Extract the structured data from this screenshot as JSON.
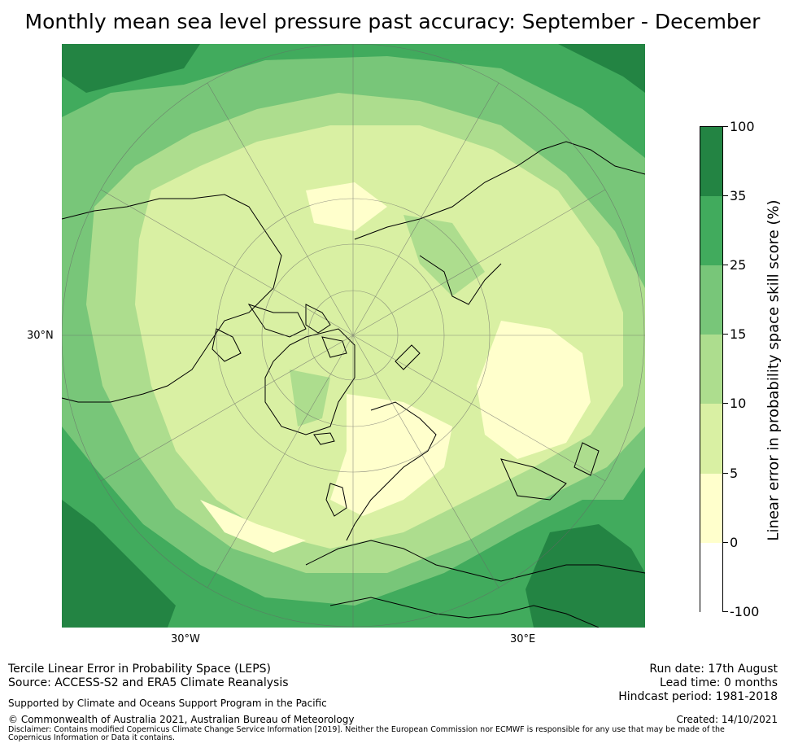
{
  "title": "Monthly mean sea level pressure past accuracy: September - December",
  "map": {
    "projection": "north polar stereographic",
    "lat_labels": [
      "30°N"
    ],
    "lon_labels": [
      "30°W",
      "30°E"
    ]
  },
  "colorbar": {
    "label": "Linear error in probability space skill score (%)",
    "ticks": [
      "100",
      "35",
      "25",
      "15",
      "10",
      "5",
      "0",
      "-100"
    ],
    "bins": [
      {
        "from": 35,
        "to": 100,
        "color": "#238443"
      },
      {
        "from": 25,
        "to": 35,
        "color": "#41ab5d"
      },
      {
        "from": 15,
        "to": 25,
        "color": "#78c679"
      },
      {
        "from": 10,
        "to": 15,
        "color": "#addd8e"
      },
      {
        "from": 5,
        "to": 10,
        "color": "#d9f0a3"
      },
      {
        "from": 0,
        "to": 5,
        "color": "#ffffcc"
      },
      {
        "from": -100,
        "to": 0,
        "color": "#ffffff"
      }
    ]
  },
  "footer": {
    "method": "Tercile Linear Error in Probability Space (LEPS)",
    "source": "Source: ACCESS-S2 and ERA5 Climate Reanalysis",
    "support": "Supported by Climate and Oceans Support Program in the Pacific",
    "copyright": "© Commonwealth of Australia 2021, Australian Bureau of Meteorology",
    "disclaimer": "Disclaimer: Contains modified Copernicus Climate Change Service Information [2019]. Neither the European Commission nor ECMWF is responsible for any use that may be made of the Copernicus Information or Data it contains.",
    "run_date": "Run date: 17th August",
    "lead_time": "Lead time: 0 months",
    "hindcast": "Hindcast period: 1981-2018",
    "created": "Created: 14/10/2021"
  }
}
